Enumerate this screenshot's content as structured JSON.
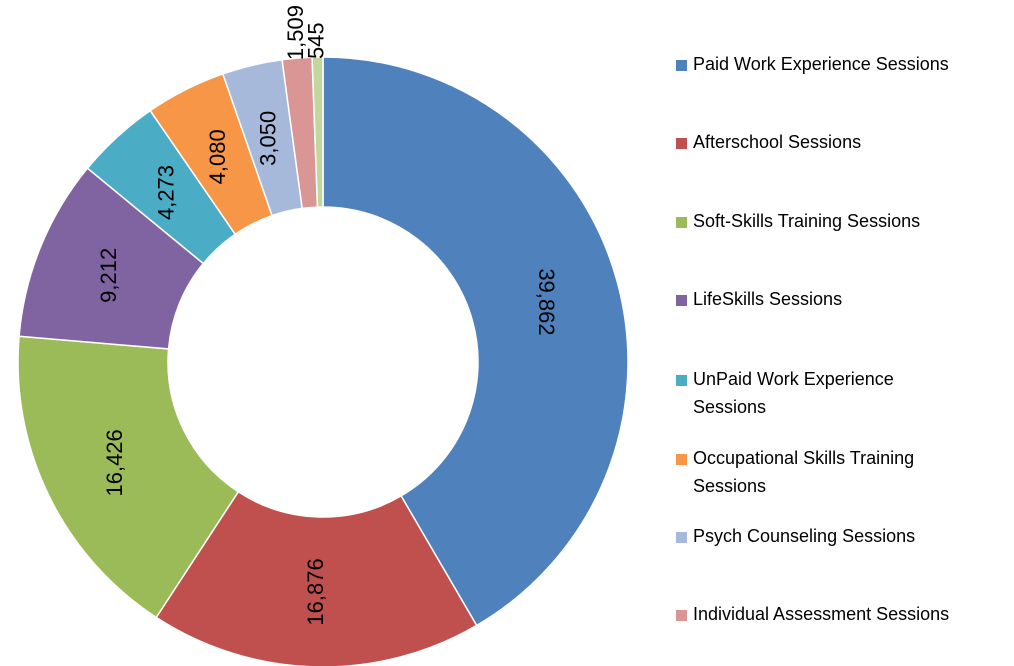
{
  "chart_data": {
    "type": "donut",
    "categories": [
      "Paid Work Experience Sessions",
      "Afterschool Sessions",
      "Soft-Skills Training Sessions",
      "LifeSkills Sessions",
      "UnPaid Work Experience Sessions",
      "Occupational Skills Training Sessions",
      "Psych Counseling Sessions",
      "Individual Assessment Sessions",
      null
    ],
    "values": [
      39862,
      16876,
      16426,
      9212,
      4273,
      4080,
      3050,
      1509,
      545
    ],
    "value_labels": [
      "39,862",
      "16,876",
      "16,426",
      "9,212",
      "4,273",
      "4,080",
      "3,050",
      "1,509",
      "545"
    ],
    "colors": [
      "#4f81bd",
      "#c0504d",
      "#9bbb59",
      "#8064a2",
      "#4bacc6",
      "#f79646",
      "#a7b9db",
      "#d99694",
      "#c3d69b"
    ],
    "legend": "right"
  }
}
